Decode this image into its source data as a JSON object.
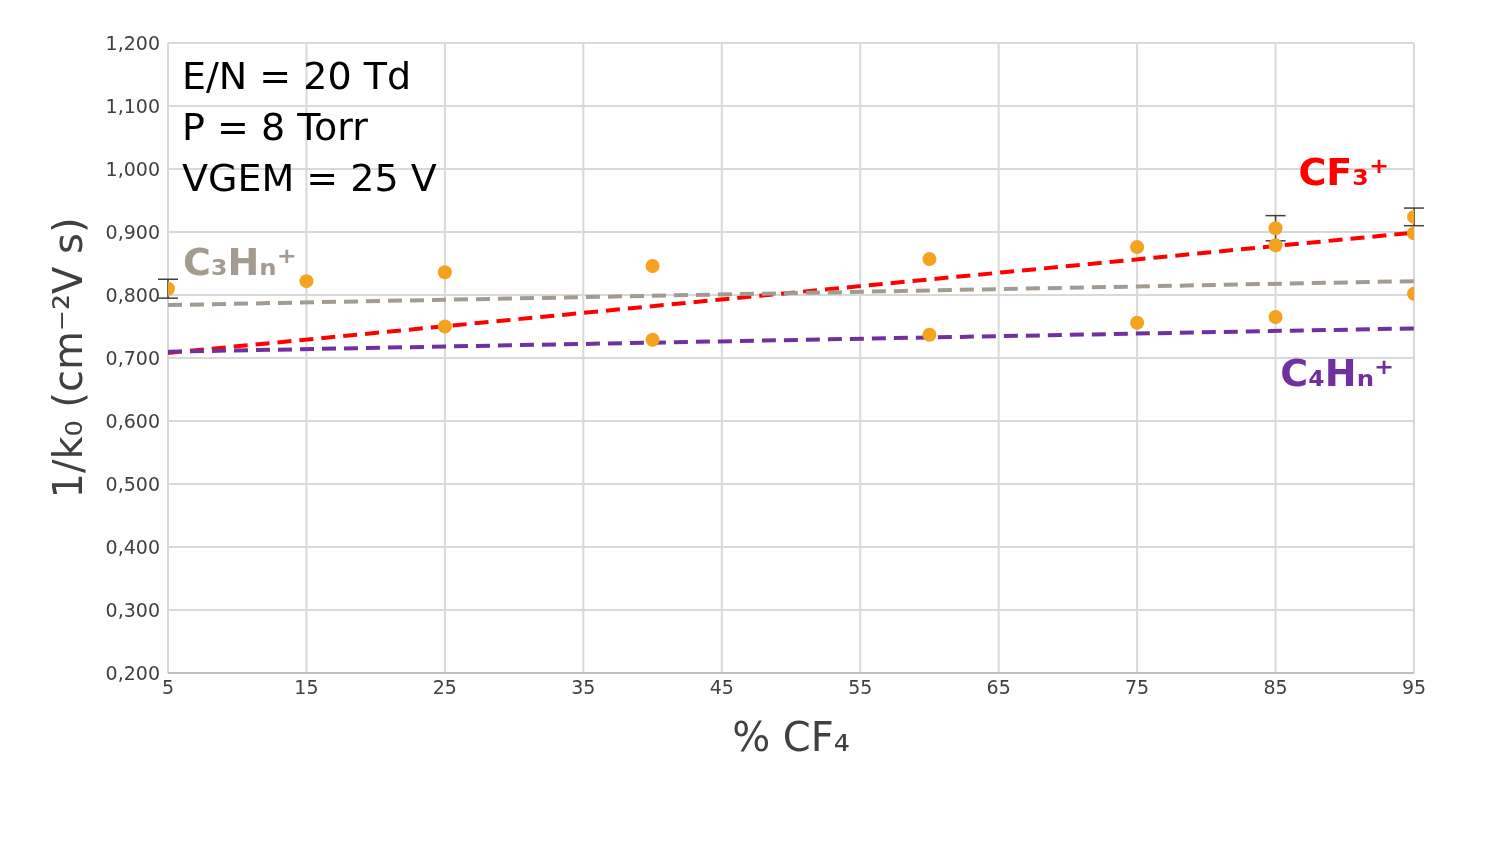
{
  "chart_data": {
    "type": "scatter",
    "xlabel": "% CF₄",
    "ylabel": "1/k₀ (cm⁻²V s)",
    "annotations": [
      "E/N = 20 Td",
      "P = 8 Torr",
      "VGEM = 25 V"
    ],
    "xlim": [
      5,
      95
    ],
    "xticks": [
      5,
      15,
      25,
      35,
      45,
      55,
      65,
      75,
      85,
      95
    ],
    "ylim": [
      0.2,
      1.2
    ],
    "yticks": [
      {
        "value": 0.2,
        "label": "0,200"
      },
      {
        "value": 0.3,
        "label": "0,300"
      },
      {
        "value": 0.4,
        "label": "0,400"
      },
      {
        "value": 0.5,
        "label": "0,500"
      },
      {
        "value": 0.6,
        "label": "0,600"
      },
      {
        "value": 0.7,
        "label": "0,700"
      },
      {
        "value": 0.8,
        "label": "0,800"
      },
      {
        "value": 0.9,
        "label": "0,900"
      },
      {
        "value": 1.0,
        "label": "1,000"
      },
      {
        "value": 1.1,
        "label": "1,100"
      },
      {
        "value": 1.2,
        "label": "1,200"
      }
    ],
    "grid": true,
    "marker": "circle",
    "series": [
      {
        "color": "#f5a21f",
        "x": [
          5,
          15,
          25,
          25,
          40,
          40,
          60,
          60,
          75,
          75,
          85,
          85,
          85,
          95,
          95,
          95
        ],
        "values": [
          0.81,
          0.822,
          0.836,
          0.75,
          0.846,
          0.729,
          0.857,
          0.737,
          0.876,
          0.756,
          0.906,
          0.879,
          0.765,
          0.924,
          0.898,
          0.802
        ],
        "errors": [
          0.015,
          null,
          null,
          null,
          null,
          null,
          null,
          null,
          null,
          null,
          0.02,
          null,
          null,
          0.014,
          null,
          null
        ]
      },
      {
        "type": "line",
        "name": "CF₃⁺",
        "color": "#ff0000",
        "x": [
          5,
          95
        ],
        "values": [
          0.708,
          0.899
        ],
        "line_style": "dashed",
        "marker": "none"
      },
      {
        "type": "line",
        "name": "C₃Hₙ⁺",
        "color": "#a39b8f",
        "x": [
          5,
          95
        ],
        "values": [
          0.784,
          0.822
        ],
        "line_style": "dashed",
        "marker": "none"
      },
      {
        "type": "line",
        "name": "C₄Hₙ⁺",
        "color": "#7030a0",
        "x": [
          5,
          95
        ],
        "values": [
          0.71,
          0.747
        ],
        "line_style": "dashed",
        "marker": "none"
      }
    ]
  }
}
